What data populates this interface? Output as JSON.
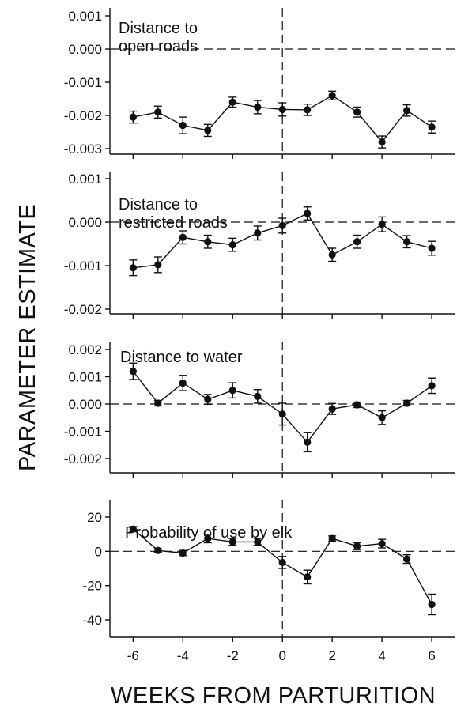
{
  "figure": {
    "y_axis_label": "PARAMETER ESTIMATE",
    "x_axis_label": "WEEKS FROM PARTURITION"
  },
  "chart_data": [
    {
      "type": "line",
      "title": "Distance to\nopen roads",
      "x": [
        -6,
        -5,
        -4,
        -3,
        -2,
        -1,
        0,
        1,
        2,
        3,
        4,
        5,
        6
      ],
      "values": [
        -0.00205,
        -0.0019,
        -0.0023,
        -0.00245,
        -0.0016,
        -0.00175,
        -0.00182,
        -0.00183,
        -0.0014,
        -0.0019,
        -0.0028,
        -0.00185,
        -0.00235
      ],
      "errors": [
        0.00018,
        0.00018,
        0.00025,
        0.00018,
        0.00015,
        0.0002,
        0.0002,
        0.00017,
        0.00013,
        0.00015,
        0.00018,
        0.00017,
        0.00018
      ],
      "ylim": [
        -0.003,
        0.001
      ],
      "yticks": [
        0.001,
        0.0,
        -0.001,
        -0.002,
        -0.003
      ],
      "ytick_labels": [
        "0.001",
        "0.000",
        "-0.001",
        "-0.002",
        "-0.003"
      ],
      "reference_line": 0.0
    },
    {
      "type": "line",
      "title": "Distance to\nrestricted roads",
      "x": [
        -6,
        -5,
        -4,
        -3,
        -2,
        -1,
        0,
        1,
        2,
        3,
        4,
        5,
        6
      ],
      "values": [
        -0.00105,
        -0.00098,
        -0.00035,
        -0.00045,
        -0.00052,
        -0.00025,
        -8e-05,
        0.0002,
        -0.00075,
        -0.00045,
        -5e-05,
        -0.00045,
        -0.0006
      ],
      "errors": [
        0.00018,
        0.00018,
        0.00015,
        0.00015,
        0.00015,
        0.00016,
        0.00017,
        0.00015,
        0.00015,
        0.00015,
        0.00017,
        0.00014,
        0.00016
      ],
      "ylim": [
        -0.002,
        0.001
      ],
      "yticks": [
        0.001,
        0.0,
        -0.001,
        -0.002
      ],
      "ytick_labels": [
        "0.001",
        "0.000",
        "-0.001",
        "-0.002"
      ],
      "reference_line": 0.0
    },
    {
      "type": "line",
      "title": "Distance to water",
      "x": [
        -6,
        -5,
        -4,
        -3,
        -2,
        -1,
        0,
        1,
        2,
        3,
        4,
        5,
        6
      ],
      "values": [
        0.0012,
        3e-05,
        0.00077,
        0.00017,
        0.0005,
        0.00028,
        -0.00037,
        -0.0014,
        -0.00018,
        -3e-05,
        -0.0005,
        3e-05,
        0.00067
      ],
      "errors": [
        0.0003,
        0.0001,
        0.00028,
        0.00018,
        0.00028,
        0.00025,
        0.0004,
        0.00035,
        0.0002,
        0.0001,
        0.00025,
        0.0001,
        0.00028
      ],
      "ylim": [
        -0.0025,
        0.0025
      ],
      "yticks": [
        0.002,
        0.001,
        0.0,
        -0.001,
        -0.002
      ],
      "ytick_labels": [
        "0.002",
        "0.001",
        "0.000",
        "-0.001",
        "-0.002"
      ],
      "reference_line": 0.0
    },
    {
      "type": "line",
      "title": "Probability of use by elk",
      "x": [
        -6,
        -5,
        -4,
        -3,
        -2,
        -1,
        0,
        1,
        2,
        3,
        4,
        5,
        6
      ],
      "values": [
        13,
        0.5,
        -1,
        7.5,
        5.5,
        5.5,
        -6.5,
        -15,
        7.5,
        3,
        4.5,
        -4.5,
        -31
      ],
      "errors": [
        1.5,
        1.0,
        1.5,
        2.5,
        2.0,
        2.0,
        3.5,
        4.0,
        1.5,
        2.0,
        2.5,
        2.5,
        6.0
      ],
      "ylim": [
        -50,
        30
      ],
      "yticks": [
        20,
        0,
        -20,
        -40
      ],
      "ytick_labels": [
        "20",
        "0",
        "-20",
        "-40"
      ],
      "xticks": [
        -6,
        -4,
        -2,
        0,
        2,
        4,
        6
      ],
      "xtick_labels": [
        "-6",
        "-4",
        "-2",
        "0",
        "2",
        "4",
        "6"
      ],
      "reference_line": 0
    }
  ]
}
